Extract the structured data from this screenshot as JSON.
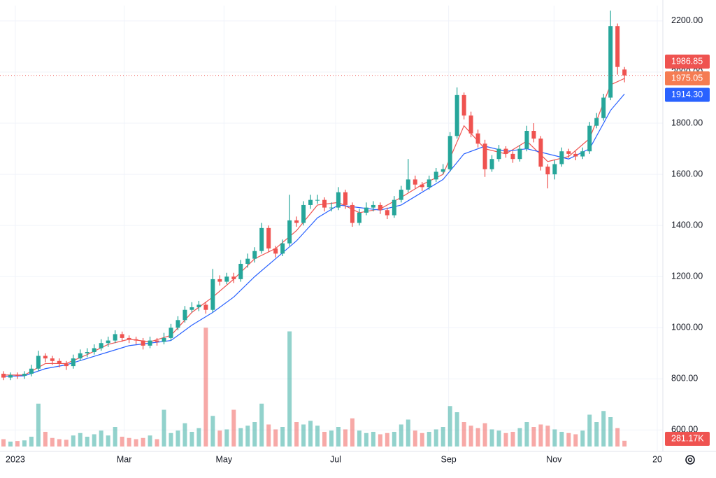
{
  "chart_data": {
    "type": "candlestick",
    "xlim": [
      -0.5,
      94.5
    ],
    "xticks": [
      {
        "value": 1.7,
        "label": "2023"
      },
      {
        "value": 17.3,
        "label": "Mar"
      },
      {
        "value": 31.6,
        "label": "May"
      },
      {
        "value": 47.6,
        "label": "Jul"
      },
      {
        "value": 63.8,
        "label": "Sep"
      },
      {
        "value": 78.9,
        "label": "Nov"
      },
      {
        "value": 93.7,
        "label": "20"
      }
    ],
    "ylim": [
      530,
      2260
    ],
    "yticks": [
      {
        "value": 600,
        "label": "600.00"
      },
      {
        "value": 800,
        "label": "800.00"
      },
      {
        "value": 1000,
        "label": "1000.00"
      },
      {
        "value": 1200,
        "label": "1200.00"
      },
      {
        "value": 1400,
        "label": "1400.00"
      },
      {
        "value": 1600,
        "label": "1600.00"
      },
      {
        "value": 1800,
        "label": "1800.00"
      },
      {
        "value": 2000,
        "label": "2000.00"
      },
      {
        "value": 2200,
        "label": "2200.00"
      }
    ],
    "grid": true,
    "up_color": "#26a69a",
    "down_color": "#ef5350",
    "ohlc": [
      [
        820,
        830,
        795,
        805
      ],
      [
        805,
        825,
        795,
        815
      ],
      [
        815,
        825,
        800,
        812
      ],
      [
        812,
        830,
        800,
        820
      ],
      [
        820,
        855,
        810,
        840
      ],
      [
        840,
        910,
        830,
        890
      ],
      [
        890,
        900,
        865,
        880
      ],
      [
        880,
        890,
        855,
        870
      ],
      [
        870,
        880,
        845,
        860
      ],
      [
        860,
        870,
        835,
        850
      ],
      [
        850,
        895,
        840,
        880
      ],
      [
        880,
        915,
        870,
        900
      ],
      [
        900,
        920,
        885,
        905
      ],
      [
        905,
        935,
        895,
        920
      ],
      [
        920,
        955,
        910,
        940
      ],
      [
        940,
        965,
        925,
        950
      ],
      [
        950,
        990,
        940,
        975
      ],
      [
        975,
        985,
        945,
        960
      ],
      [
        960,
        970,
        940,
        955
      ],
      [
        955,
        965,
        935,
        950
      ],
      [
        950,
        960,
        915,
        930
      ],
      [
        930,
        965,
        920,
        950
      ],
      [
        950,
        960,
        930,
        945
      ],
      [
        945,
        980,
        935,
        960
      ],
      [
        960,
        1015,
        950,
        1000
      ],
      [
        1000,
        1045,
        990,
        1030
      ],
      [
        1030,
        1085,
        1020,
        1070
      ],
      [
        1070,
        1100,
        1060,
        1080
      ],
      [
        1080,
        1105,
        1065,
        1090
      ],
      [
        1090,
        1100,
        1055,
        1070
      ],
      [
        1070,
        1230,
        1060,
        1190
      ],
      [
        1190,
        1205,
        1165,
        1180
      ],
      [
        1180,
        1215,
        1170,
        1200
      ],
      [
        1200,
        1215,
        1175,
        1190
      ],
      [
        1190,
        1265,
        1180,
        1250
      ],
      [
        1250,
        1290,
        1235,
        1270
      ],
      [
        1270,
        1315,
        1255,
        1300
      ],
      [
        1300,
        1410,
        1290,
        1390
      ],
      [
        1390,
        1400,
        1295,
        1310
      ],
      [
        1310,
        1320,
        1275,
        1290
      ],
      [
        1290,
        1345,
        1280,
        1330
      ],
      [
        1330,
        1520,
        1320,
        1420
      ],
      [
        1420,
        1435,
        1395,
        1410
      ],
      [
        1410,
        1495,
        1400,
        1480
      ],
      [
        1480,
        1520,
        1465,
        1500
      ],
      [
        1500,
        1520,
        1485,
        1500
      ],
      [
        1500,
        1510,
        1455,
        1470
      ],
      [
        1470,
        1490,
        1455,
        1470
      ],
      [
        1470,
        1550,
        1460,
        1530
      ],
      [
        1530,
        1540,
        1465,
        1480
      ],
      [
        1480,
        1490,
        1395,
        1410
      ],
      [
        1410,
        1465,
        1400,
        1450
      ],
      [
        1450,
        1490,
        1440,
        1470
      ],
      [
        1470,
        1495,
        1455,
        1480
      ],
      [
        1480,
        1490,
        1445,
        1460
      ],
      [
        1460,
        1470,
        1425,
        1440
      ],
      [
        1440,
        1515,
        1430,
        1500
      ],
      [
        1500,
        1555,
        1490,
        1540
      ],
      [
        1540,
        1660,
        1530,
        1580
      ],
      [
        1580,
        1595,
        1545,
        1560
      ],
      [
        1560,
        1570,
        1535,
        1550
      ],
      [
        1550,
        1595,
        1540,
        1580
      ],
      [
        1580,
        1625,
        1570,
        1610
      ],
      [
        1610,
        1640,
        1600,
        1620
      ],
      [
        1620,
        1765,
        1610,
        1750
      ],
      [
        1750,
        1940,
        1740,
        1910
      ],
      [
        1910,
        1920,
        1815,
        1830
      ],
      [
        1830,
        1845,
        1745,
        1760
      ],
      [
        1760,
        1775,
        1705,
        1720
      ],
      [
        1720,
        1735,
        1590,
        1620
      ],
      [
        1620,
        1675,
        1610,
        1660
      ],
      [
        1660,
        1715,
        1650,
        1700
      ],
      [
        1700,
        1710,
        1665,
        1680
      ],
      [
        1680,
        1690,
        1645,
        1660
      ],
      [
        1660,
        1715,
        1650,
        1700
      ],
      [
        1700,
        1790,
        1690,
        1770
      ],
      [
        1770,
        1800,
        1725,
        1740
      ],
      [
        1740,
        1750,
        1615,
        1630
      ],
      [
        1630,
        1640,
        1545,
        1600
      ],
      [
        1600,
        1655,
        1580,
        1640
      ],
      [
        1640,
        1705,
        1630,
        1690
      ],
      [
        1690,
        1700,
        1665,
        1680
      ],
      [
        1680,
        1690,
        1655,
        1670
      ],
      [
        1670,
        1705,
        1660,
        1690
      ],
      [
        1690,
        1805,
        1680,
        1790
      ],
      [
        1790,
        1840,
        1780,
        1820
      ],
      [
        1820,
        1915,
        1810,
        1900
      ],
      [
        1900,
        2240,
        1890,
        2180
      ],
      [
        2180,
        2190,
        1990,
        2020
      ],
      [
        2010,
        2020,
        1960,
        1986.85
      ]
    ],
    "volume_ylim": [
      0,
      6000
    ],
    "volume": [
      360,
      240,
      270,
      300,
      480,
      2100,
      720,
      420,
      360,
      330,
      540,
      660,
      480,
      600,
      780,
      540,
      960,
      480,
      420,
      360,
      420,
      540,
      360,
      1800,
      660,
      780,
      1140,
      720,
      900,
      5820,
      1500,
      780,
      840,
      1800,
      900,
      1020,
      1200,
      2100,
      1080,
      840,
      960,
      5640,
      1200,
      1080,
      1260,
      1020,
      720,
      780,
      960,
      840,
      1380,
      780,
      660,
      720,
      600,
      660,
      720,
      1080,
      1320,
      780,
      660,
      720,
      840,
      960,
      1980,
      1680,
      1200,
      1020,
      900,
      1140,
      840,
      780,
      660,
      720,
      900,
      1200,
      960,
      1080,
      1020,
      840,
      720,
      660,
      600,
      780,
      1560,
      1200,
      1740,
      1440,
      900,
      281.17
    ],
    "volume_last_label": "281.17K",
    "series": [
      {
        "color": "#ef5350",
        "x": [
          0,
          3,
          6,
          9,
          12,
          15,
          18,
          21,
          24,
          27,
          30,
          33,
          36,
          39,
          42,
          45,
          48,
          51,
          54,
          57,
          60,
          63,
          66,
          69,
          72,
          75,
          78,
          81,
          84,
          87,
          89
        ],
        "values": [
          815,
          815,
          860,
          860,
          895,
          935,
          955,
          945,
          970,
          1060,
          1120,
          1190,
          1270,
          1310,
          1380,
          1480,
          1490,
          1450,
          1465,
          1510,
          1560,
          1600,
          1790,
          1700,
          1680,
          1730,
          1650,
          1670,
          1740,
          1950,
          1975.05
        ],
        "last_label": "1975.05",
        "label_color": "#f57c52"
      },
      {
        "color": "#2962ff",
        "x": [
          0,
          3,
          6,
          9,
          12,
          15,
          18,
          21,
          24,
          27,
          30,
          33,
          36,
          39,
          42,
          45,
          48,
          51,
          54,
          57,
          60,
          63,
          66,
          69,
          72,
          75,
          78,
          81,
          84,
          87,
          89
        ],
        "values": [
          810,
          812,
          840,
          855,
          880,
          905,
          930,
          940,
          950,
          1010,
          1060,
          1120,
          1200,
          1270,
          1340,
          1430,
          1480,
          1470,
          1460,
          1480,
          1530,
          1580,
          1680,
          1710,
          1690,
          1700,
          1680,
          1660,
          1700,
          1850,
          1914.3
        ],
        "last_label": "1914.30",
        "label_color": "#2962ff"
      }
    ]
  }
}
